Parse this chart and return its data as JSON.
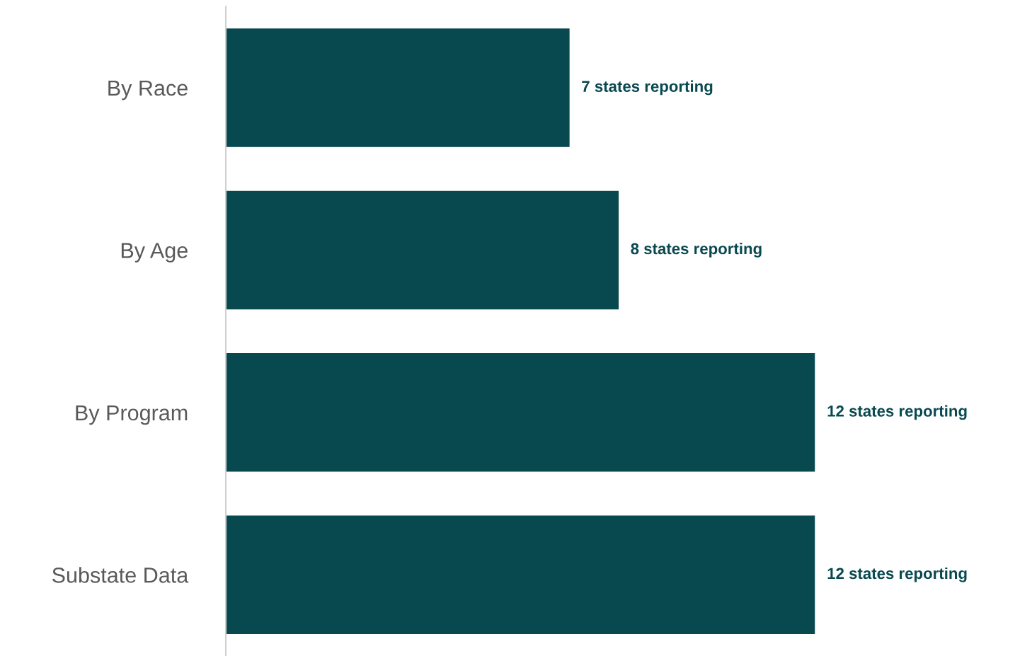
{
  "chart_data": {
    "type": "bar",
    "orientation": "horizontal",
    "categories": [
      "By Race",
      "By Age",
      "By Program",
      "Substate Data"
    ],
    "values": [
      7,
      8,
      12,
      12
    ],
    "color": "#08484f",
    "value_labels": [
      "7 states reporting",
      "8 states reporting",
      "12 states reporting",
      "12 states reporting"
    ],
    "grid": false,
    "legend": false
  }
}
